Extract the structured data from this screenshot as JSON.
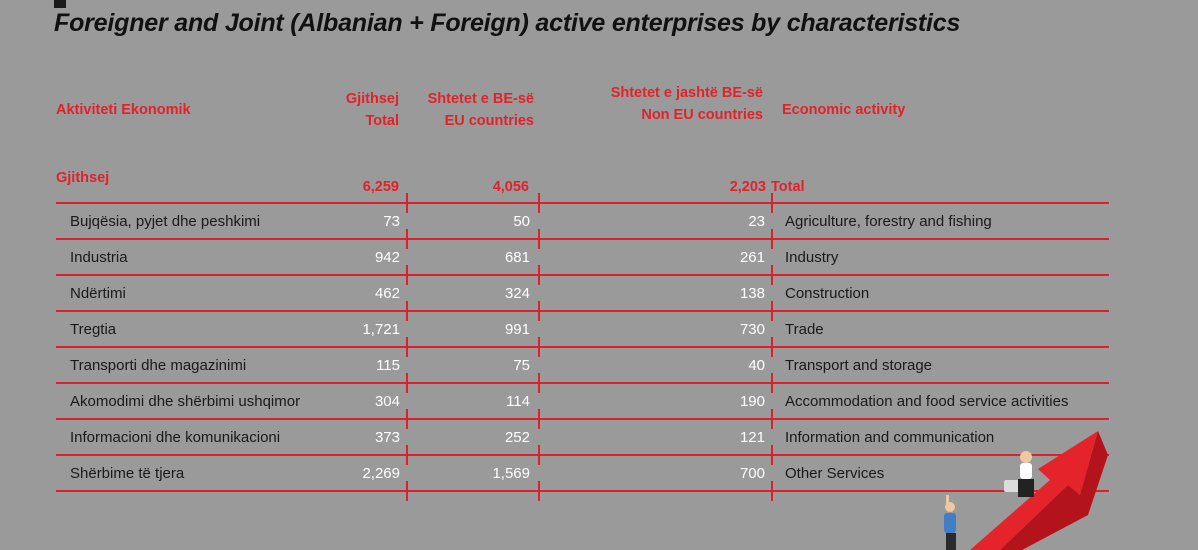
{
  "title": "Foreigner and Joint  (Albanian + Foreign) active enterprises by characteristics",
  "headers": {
    "activity_al": "Aktiviteti Ekonomik",
    "total_al": "Gjithsej",
    "total_en": "Total",
    "eu_al": "Shtetet e BE-së",
    "eu_en": "EU countries",
    "noneu_al": "Shtetet e jashtë BE-së",
    "noneu_en": "Non EU countries",
    "activity_en": "Economic activity"
  },
  "totals": {
    "label_al": "Gjithsej",
    "total": "6,259",
    "eu": "4,056",
    "noneu": "2,203",
    "label_en": "Total"
  },
  "rows": [
    {
      "al": "Bujqësia, pyjet dhe  peshkimi",
      "total": "73",
      "eu": "50",
      "noneu": "23",
      "en": "Agriculture, forestry and fishing"
    },
    {
      "al": "Industria",
      "total": "942",
      "eu": "681",
      "noneu": "261",
      "en": "Industry"
    },
    {
      "al": "Ndërtimi",
      "total": "462",
      "eu": "324",
      "noneu": "138",
      "en": "Construction"
    },
    {
      "al": "Tregtia",
      "total": "1,721",
      "eu": "991",
      "noneu": "730",
      "en": "Trade"
    },
    {
      "al": "Transporti dhe magazinimi",
      "total": "115",
      "eu": "75",
      "noneu": "40",
      "en": "Transport and storage"
    },
    {
      "al": "Akomodimi dhe shërbimi ushqimor",
      "total": "304",
      "eu": "114",
      "noneu": "190",
      "en": "Accommodation and food service activities"
    },
    {
      "al": "Informacioni dhe komunikacioni",
      "total": "373",
      "eu": "252",
      "noneu": "121",
      "en": "Information and communication"
    },
    {
      "al": "Shërbime të tjera",
      "total": "2,269",
      "eu": "1,569",
      "noneu": "700",
      "en": "Other Services"
    }
  ],
  "colors": {
    "accent": "#e0222b",
    "background": "#9a9a9a",
    "title": "#111111",
    "numbers": "#ffffff"
  }
}
